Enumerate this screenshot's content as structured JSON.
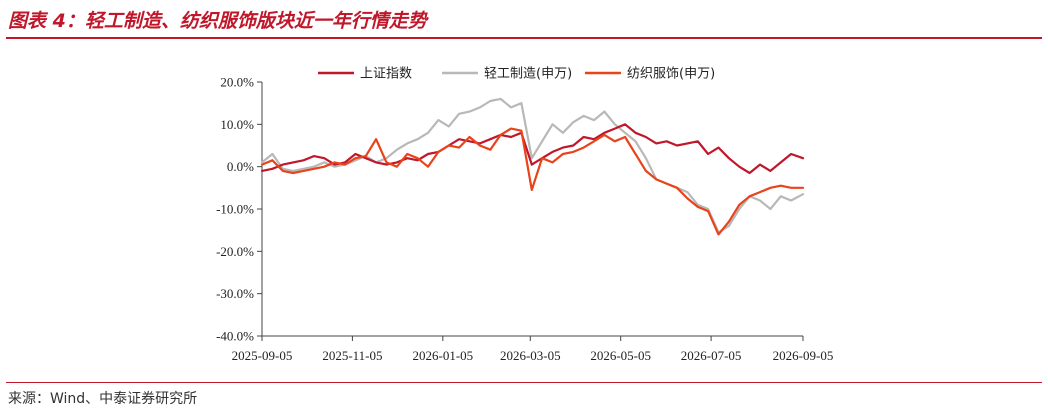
{
  "figure": {
    "title": "图表 4：轻工制造、纺织服饰版块近一年行情走势",
    "source": "来源：Wind、中泰证券研究所"
  },
  "chart_data": {
    "type": "line",
    "title": "",
    "xlabel": "",
    "ylabel": "",
    "y_unit": "%",
    "ylim": [
      -40,
      20
    ],
    "yticks": [
      20,
      10,
      0,
      -10,
      -20,
      -30,
      -40
    ],
    "ytick_labels": [
      "20.0%",
      "10.0%",
      "0.0%",
      "-10.0%",
      "-20.0%",
      "-30.0%",
      "-40.0%"
    ],
    "xlim": [
      "2025-09-05",
      "2026-09-05"
    ],
    "xticks": [
      "2025-09-05",
      "2025-11-05",
      "2026-01-05",
      "2026-03-05",
      "2026-05-05",
      "2026-07-05",
      "2026-09-05"
    ],
    "grid": false,
    "legend_position": "top",
    "series": [
      {
        "name": "上证指数",
        "color": "#c0172b",
        "x": [
          "2025-09-05",
          "2025-09-12",
          "2025-09-19",
          "2025-09-26",
          "2025-10-03",
          "2025-10-10",
          "2025-10-17",
          "2025-10-24",
          "2025-10-31",
          "2025-11-07",
          "2025-11-14",
          "2025-11-21",
          "2025-11-28",
          "2025-12-05",
          "2025-12-12",
          "2025-12-19",
          "2025-12-26",
          "2026-01-02",
          "2026-01-09",
          "2026-01-16",
          "2026-01-23",
          "2026-01-30",
          "2026-02-06",
          "2026-02-13",
          "2026-02-20",
          "2026-02-27",
          "2026-03-06",
          "2026-03-13",
          "2026-03-20",
          "2026-03-27",
          "2026-04-03",
          "2026-04-10",
          "2026-04-17",
          "2026-04-24",
          "2026-05-01",
          "2026-05-08",
          "2026-05-15",
          "2026-05-22",
          "2026-05-29",
          "2026-06-05",
          "2026-06-12",
          "2026-06-19",
          "2026-06-26",
          "2026-07-03",
          "2026-07-10",
          "2026-07-17",
          "2026-07-24",
          "2026-07-31",
          "2026-08-07",
          "2026-08-14",
          "2026-08-21",
          "2026-08-28",
          "2026-09-05"
        ],
        "values": [
          -1.0,
          -0.5,
          0.5,
          1.0,
          1.5,
          2.5,
          2.0,
          0.5,
          1.0,
          3.0,
          2.0,
          1.0,
          0.5,
          1.0,
          2.0,
          1.5,
          3.0,
          3.5,
          5.0,
          6.5,
          6.0,
          5.5,
          6.5,
          7.5,
          7.0,
          8.0,
          0.5,
          2.0,
          3.5,
          4.5,
          5.0,
          7.0,
          6.5,
          8.0,
          9.0,
          10.0,
          8.0,
          7.0,
          5.5,
          6.0,
          5.0,
          5.5,
          6.0,
          3.0,
          4.5,
          2.0,
          0.0,
          -1.5,
          0.5,
          -1.0,
          1.0,
          3.0,
          2.0
        ]
      },
      {
        "name": "轻工制造(申万)",
        "color": "#b8b8b8",
        "x": [
          "2025-09-05",
          "2025-09-12",
          "2025-09-19",
          "2025-09-26",
          "2025-10-03",
          "2025-10-10",
          "2025-10-17",
          "2025-10-24",
          "2025-10-31",
          "2025-11-07",
          "2025-11-14",
          "2025-11-21",
          "2025-11-28",
          "2025-12-05",
          "2025-12-12",
          "2025-12-19",
          "2025-12-26",
          "2026-01-02",
          "2026-01-09",
          "2026-01-16",
          "2026-01-23",
          "2026-01-30",
          "2026-02-06",
          "2026-02-13",
          "2026-02-20",
          "2026-02-27",
          "2026-03-06",
          "2026-03-13",
          "2026-03-20",
          "2026-03-27",
          "2026-04-03",
          "2026-04-10",
          "2026-04-17",
          "2026-04-24",
          "2026-05-01",
          "2026-05-08",
          "2026-05-15",
          "2026-05-22",
          "2026-05-29",
          "2026-06-05",
          "2026-06-12",
          "2026-06-19",
          "2026-06-26",
          "2026-07-03",
          "2026-07-10",
          "2026-07-17",
          "2026-07-24",
          "2026-07-31",
          "2026-08-07",
          "2026-08-14",
          "2026-08-21",
          "2026-08-28",
          "2026-09-05"
        ],
        "values": [
          1.0,
          3.0,
          -0.5,
          -1.0,
          -0.5,
          0.0,
          1.0,
          0.0,
          0.5,
          1.5,
          2.5,
          1.0,
          2.0,
          4.0,
          5.5,
          6.5,
          8.0,
          11.0,
          9.5,
          12.5,
          13.0,
          14.0,
          15.5,
          16.0,
          14.0,
          15.0,
          2.0,
          6.0,
          10.0,
          8.0,
          10.5,
          12.0,
          11.0,
          13.0,
          10.0,
          8.0,
          6.0,
          2.0,
          -3.0,
          -4.0,
          -5.0,
          -6.0,
          -9.0,
          -10.0,
          -15.5,
          -14.0,
          -10.0,
          -7.0,
          -8.0,
          -10.0,
          -7.0,
          -8.0,
          -6.5
        ]
      },
      {
        "name": "纺织服饰(申万)",
        "color": "#e8431a",
        "x": [
          "2025-09-05",
          "2025-09-12",
          "2025-09-19",
          "2025-09-26",
          "2025-10-03",
          "2025-10-10",
          "2025-10-17",
          "2025-10-24",
          "2025-10-31",
          "2025-11-07",
          "2025-11-14",
          "2025-11-21",
          "2025-11-28",
          "2025-12-05",
          "2025-12-12",
          "2025-12-19",
          "2025-12-26",
          "2026-01-02",
          "2026-01-09",
          "2026-01-16",
          "2026-01-23",
          "2026-01-30",
          "2026-02-06",
          "2026-02-13",
          "2026-02-20",
          "2026-02-27",
          "2026-03-06",
          "2026-03-13",
          "2026-03-20",
          "2026-03-27",
          "2026-04-03",
          "2026-04-10",
          "2026-04-17",
          "2026-04-24",
          "2026-05-01",
          "2026-05-08",
          "2026-05-15",
          "2026-05-22",
          "2026-05-29",
          "2026-06-05",
          "2026-06-12",
          "2026-06-19",
          "2026-06-26",
          "2026-07-03",
          "2026-07-10",
          "2026-07-17",
          "2026-07-24",
          "2026-07-31",
          "2026-08-07",
          "2026-08-14",
          "2026-08-21",
          "2026-08-28",
          "2026-09-05"
        ],
        "values": [
          0.5,
          1.5,
          -1.0,
          -1.5,
          -1.0,
          -0.5,
          0.0,
          1.0,
          0.5,
          2.0,
          2.5,
          6.5,
          1.0,
          0.0,
          3.0,
          2.0,
          0.0,
          3.5,
          5.0,
          4.5,
          7.0,
          5.0,
          4.0,
          7.5,
          9.0,
          8.5,
          -5.5,
          2.0,
          1.0,
          3.0,
          3.5,
          4.5,
          6.0,
          7.5,
          6.0,
          7.0,
          3.0,
          -1.0,
          -3.0,
          -4.0,
          -5.0,
          -7.5,
          -9.5,
          -10.5,
          -16.0,
          -13.0,
          -9.0,
          -7.0,
          -6.0,
          -5.0,
          -4.5,
          -5.0,
          -5.0
        ]
      }
    ]
  }
}
